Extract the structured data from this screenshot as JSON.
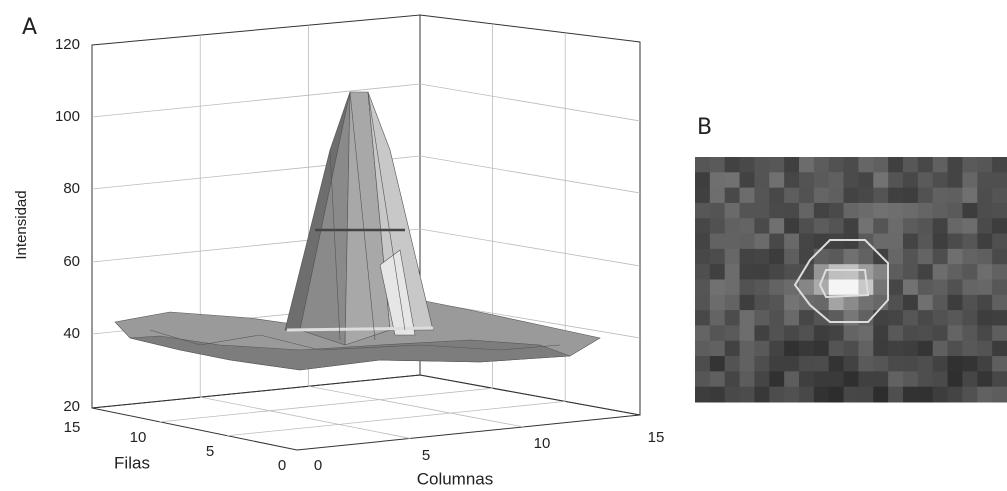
{
  "panel_a": {
    "label": "A",
    "z_axis": {
      "title": "Intensidad",
      "ticks": [
        "120",
        "100",
        "80",
        "60",
        "40",
        "20"
      ]
    },
    "rows_axis": {
      "title": "Filas",
      "ticks": [
        "15",
        "10",
        "5",
        "0"
      ]
    },
    "cols_axis": {
      "title": "Columnas",
      "ticks": [
        "0",
        "5",
        "10",
        "15"
      ]
    }
  },
  "panel_b": {
    "label": "B"
  }
}
